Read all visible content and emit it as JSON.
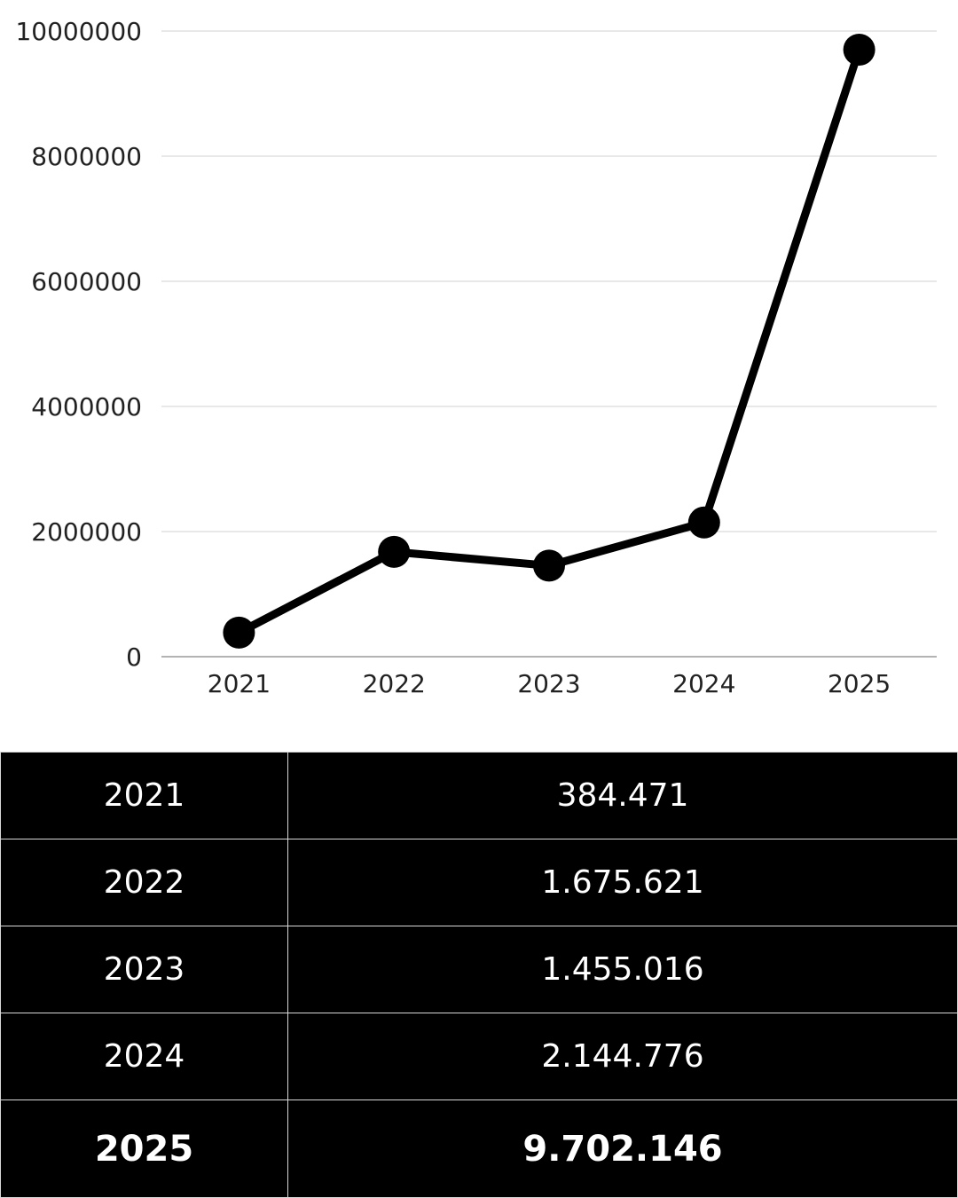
{
  "chart_data": {
    "type": "line",
    "title": "",
    "xlabel": "",
    "ylabel": "",
    "categories": [
      "2021",
      "2022",
      "2023",
      "2024",
      "2025"
    ],
    "series": [
      {
        "values": [
          384471,
          1675621,
          1455016,
          2144776,
          9702146
        ]
      }
    ],
    "ylim": [
      0,
      10000000
    ],
    "yticks": [
      "0",
      "2000000",
      "4000000",
      "6000000",
      "8000000",
      "10000000"
    ],
    "grid": true,
    "legend": "none",
    "colors": {
      "line": "#000000",
      "grid": "#d0d0d0",
      "axis": "#9a9a9a",
      "tick_text": "#222222"
    }
  },
  "table": {
    "rows": [
      {
        "year": "2021",
        "value": "384.471"
      },
      {
        "year": "2022",
        "value": "1.675.621"
      },
      {
        "year": "2023",
        "value": "1.455.016"
      },
      {
        "year": "2024",
        "value": "2.144.776"
      }
    ],
    "total": {
      "year": "2025",
      "value": "9.702.146"
    },
    "colors": {
      "background": "#000000",
      "text": "#ffffff",
      "border": "#d8d8d8"
    }
  }
}
